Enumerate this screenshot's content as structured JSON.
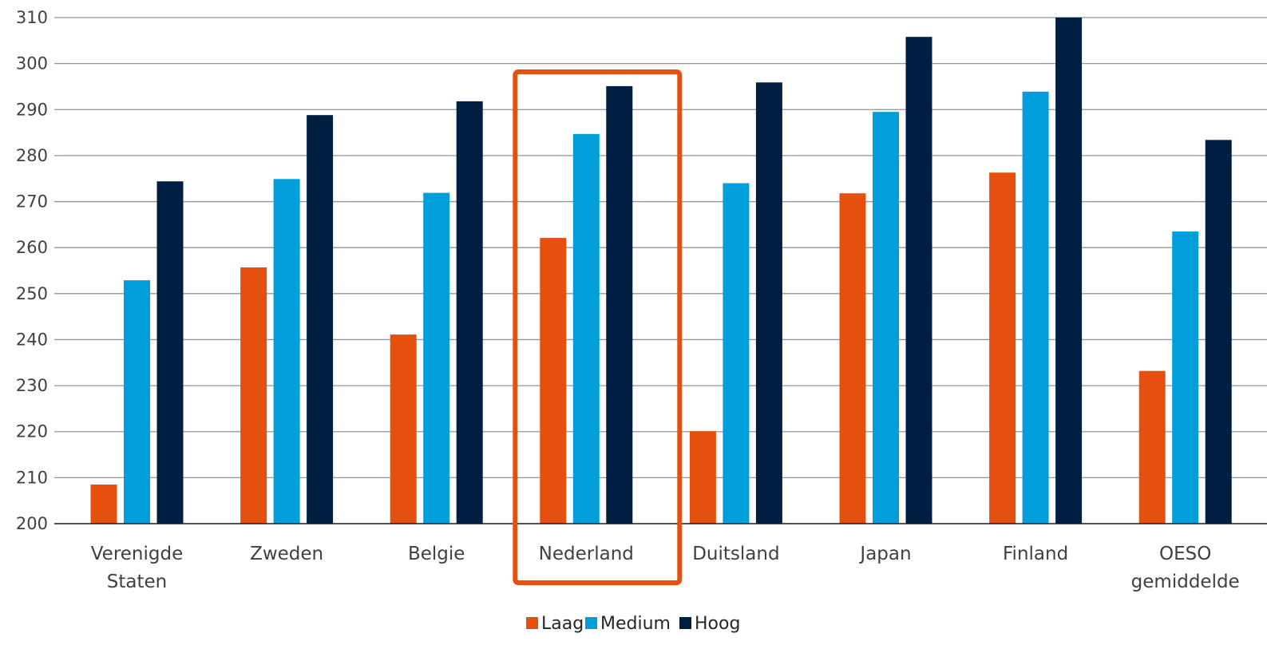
{
  "chart_data": {
    "type": "bar",
    "categories": [
      [
        "Verenigde",
        "Staten"
      ],
      [
        "Zweden"
      ],
      [
        "Belgie"
      ],
      [
        "Nederland"
      ],
      [
        "Duitsland"
      ],
      [
        "Japan"
      ],
      [
        "Finland"
      ],
      [
        "OESO",
        "gemiddelde"
      ]
    ],
    "series": [
      {
        "name": "Laag",
        "color": "#E5500F",
        "values": [
          208.5,
          255.7,
          241.1,
          262.1,
          220.1,
          271.8,
          276.3,
          233.2
        ]
      },
      {
        "name": "Medium",
        "color": "#009FDB",
        "values": [
          252.9,
          274.9,
          271.9,
          284.7,
          274.0,
          289.5,
          293.9,
          263.5
        ]
      },
      {
        "name": "Hoog",
        "color": "#001E41",
        "values": [
          274.4,
          288.8,
          291.8,
          295.1,
          295.9,
          305.8,
          310.0,
          283.4
        ]
      }
    ],
    "ylim": [
      200,
      310
    ],
    "yticks": [
      200,
      210,
      220,
      230,
      240,
      250,
      260,
      270,
      280,
      290,
      300,
      310
    ],
    "title": "",
    "xlabel": "",
    "ylabel": "",
    "grid": true,
    "legend": "bottom",
    "highlight": {
      "category_index": 3,
      "color": "#E5500F"
    }
  }
}
